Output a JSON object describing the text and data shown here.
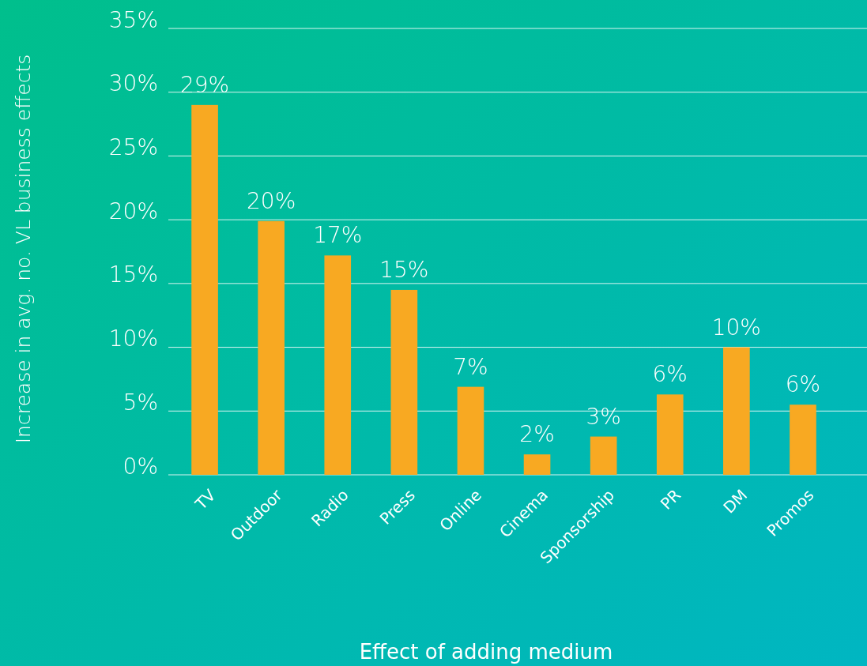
{
  "chart_data": {
    "type": "bar",
    "xlabel": "Effect of adding medium",
    "ylabel": "Increase in avg. no.  VL business effects",
    "categories": [
      "TV",
      "Outdoor",
      "Radio",
      "Press",
      "Online",
      "Cinema",
      "Sponsorship",
      "PR",
      "DM",
      "Promos"
    ],
    "values": [
      29,
      19.9,
      17.2,
      14.5,
      6.9,
      1.6,
      3,
      6.3,
      10,
      5.5
    ],
    "value_labels": [
      "29%",
      "20%",
      "17%",
      "15%",
      "7%",
      "2%",
      "3%",
      "6%",
      "10%",
      "6%"
    ],
    "color": "#f8a922",
    "ylim": [
      0,
      35
    ],
    "yticks": [
      {
        "value": 0,
        "label": "0%"
      },
      {
        "value": 5,
        "label": "5%"
      },
      {
        "value": 10,
        "label": "10%"
      },
      {
        "value": 15,
        "label": "15%"
      },
      {
        "value": 20,
        "label": "20%"
      },
      {
        "value": 25,
        "label": "25%"
      },
      {
        "value": 30,
        "label": "30%"
      },
      {
        "value": 35,
        "label": "35%"
      }
    ],
    "grid": "y"
  }
}
